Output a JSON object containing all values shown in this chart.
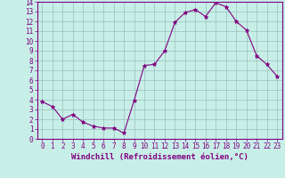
{
  "x": [
    0,
    1,
    2,
    3,
    4,
    5,
    6,
    7,
    8,
    9,
    10,
    11,
    12,
    13,
    14,
    15,
    16,
    17,
    18,
    19,
    20,
    21,
    22,
    23
  ],
  "y": [
    3.8,
    3.3,
    2.0,
    2.5,
    1.7,
    1.3,
    1.1,
    1.1,
    0.6,
    3.9,
    7.5,
    7.6,
    9.0,
    11.9,
    12.9,
    13.2,
    12.5,
    13.9,
    13.5,
    12.0,
    11.1,
    8.5,
    7.6,
    6.4
  ],
  "line_color": "#800080",
  "marker": "*",
  "marker_size": 3.5,
  "bg_color": "#c8eee8",
  "grid_color": "#9bbfbb",
  "xlabel": "Windchill (Refroidissement éolien,°C)",
  "xlabel_fontsize": 6.5,
  "xlim": [
    -0.5,
    23.5
  ],
  "ylim": [
    0,
    14
  ],
  "yticks": [
    0,
    1,
    2,
    3,
    4,
    5,
    6,
    7,
    8,
    9,
    10,
    11,
    12,
    13,
    14
  ],
  "xticks": [
    0,
    1,
    2,
    3,
    4,
    5,
    6,
    7,
    8,
    9,
    10,
    11,
    12,
    13,
    14,
    15,
    16,
    17,
    18,
    19,
    20,
    21,
    22,
    23
  ],
  "tick_fontsize": 5.5,
  "axis_color": "#800080",
  "line_width": 0.8
}
